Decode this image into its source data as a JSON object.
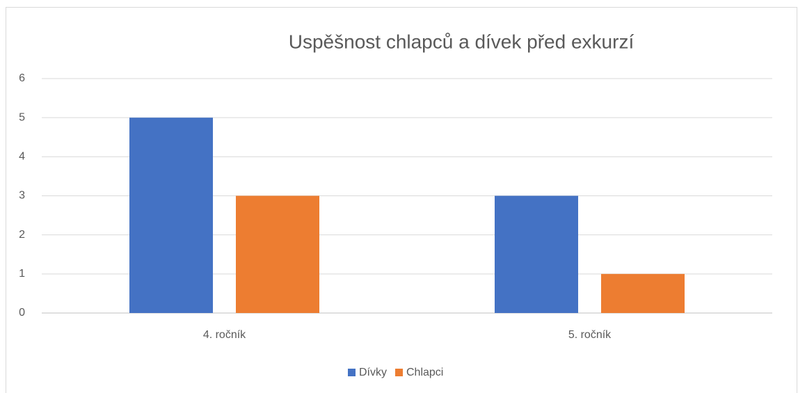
{
  "chart_data": {
    "type": "bar",
    "title": "Uspěšnost chlapců a dívek před exkurzí",
    "categories": [
      "4. ročník",
      "5. ročník"
    ],
    "series": [
      {
        "name": "Dívky",
        "color": "#4472c4",
        "values": [
          5,
          3
        ]
      },
      {
        "name": "Chlapci",
        "color": "#ed7d31",
        "values": [
          3,
          1
        ]
      }
    ],
    "ylim": [
      0,
      6
    ],
    "yticks": [
      0,
      1,
      2,
      3,
      4,
      5,
      6
    ],
    "grid": true,
    "legend": "bottom"
  }
}
